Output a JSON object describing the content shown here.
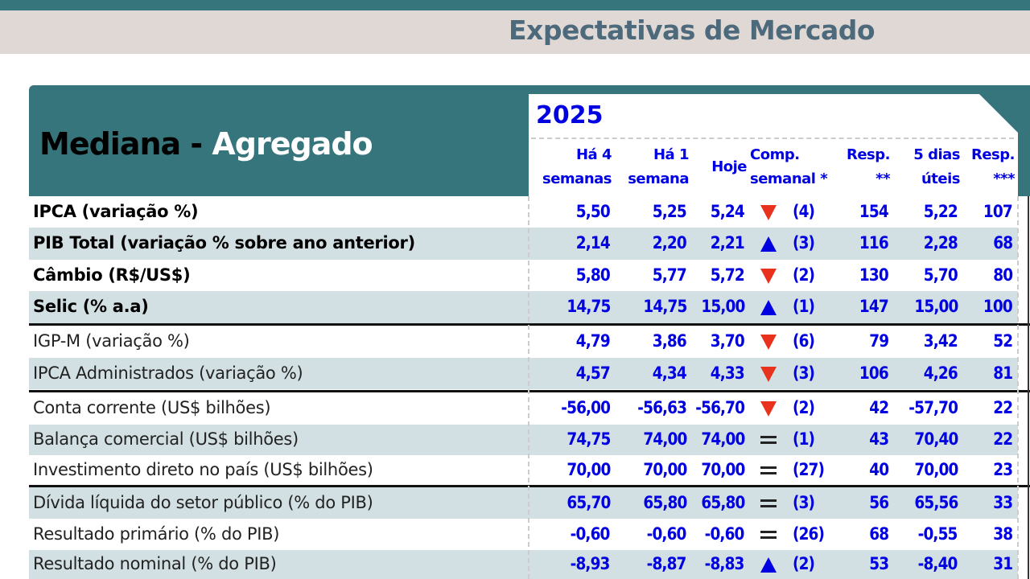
{
  "page_title": "Expectativas de Mercado",
  "header": {
    "title_a": "Mediana - ",
    "title_b": "Agregado",
    "year": "2025"
  },
  "columns": [
    {
      "l1": "Há 4",
      "l2": "semanas"
    },
    {
      "l1": "Há 1",
      "l2": "semana"
    },
    {
      "l1": "",
      "l2": "Hoje"
    },
    {
      "l1": "Comp.",
      "l2": "semanal *"
    },
    {
      "l1": "Resp.",
      "l2": "**"
    },
    {
      "l1": "5 dias",
      "l2": "úteis"
    },
    {
      "l1": "Resp.",
      "l2": "***"
    }
  ],
  "colors": {
    "teal": "#36757b",
    "blue": "#0000e0",
    "red": "#e8321e",
    "stripe": "#d3e0e3"
  },
  "rows": [
    {
      "label": "IPCA (variação %)",
      "bold": true,
      "h4": "5,50",
      "h1": "5,25",
      "hoje": "5,24",
      "trend": "down",
      "comp": "(4)",
      "resp": "154",
      "d5": "5,22",
      "resp3": "107"
    },
    {
      "label": "PIB Total (variação % sobre ano anterior)",
      "bold": true,
      "h4": "2,14",
      "h1": "2,20",
      "hoje": "2,21",
      "trend": "up",
      "comp": "(3)",
      "resp": "116",
      "d5": "2,28",
      "resp3": "68"
    },
    {
      "label": "Câmbio (R$/US$)",
      "bold": true,
      "h4": "5,80",
      "h1": "5,77",
      "hoje": "5,72",
      "trend": "down",
      "comp": "(2)",
      "resp": "130",
      "d5": "5,70",
      "resp3": "80"
    },
    {
      "label": "Selic (% a.a)",
      "bold": true,
      "h4": "14,75",
      "h1": "14,75",
      "hoje": "15,00",
      "trend": "up",
      "comp": "(1)",
      "resp": "147",
      "d5": "15,00",
      "resp3": "100"
    },
    {
      "label": "IGP-M (variação %)",
      "bold": false,
      "h4": "4,79",
      "h1": "3,86",
      "hoje": "3,70",
      "trend": "down",
      "comp": "(6)",
      "resp": "79",
      "d5": "3,42",
      "resp3": "52"
    },
    {
      "label": "IPCA Administrados (variação %)",
      "bold": false,
      "h4": "4,57",
      "h1": "4,34",
      "hoje": "4,33",
      "trend": "down",
      "comp": "(3)",
      "resp": "106",
      "d5": "4,26",
      "resp3": "81"
    },
    {
      "label": "Conta corrente (US$ bilhões)",
      "bold": false,
      "h4": "-56,00",
      "h1": "-56,63",
      "hoje": "-56,70",
      "trend": "down",
      "comp": "(2)",
      "resp": "42",
      "d5": "-57,70",
      "resp3": "22"
    },
    {
      "label": "Balança comercial (US$ bilhões)",
      "bold": false,
      "h4": "74,75",
      "h1": "74,00",
      "hoje": "74,00",
      "trend": "equal",
      "comp": "(1)",
      "resp": "43",
      "d5": "70,40",
      "resp3": "22"
    },
    {
      "label": "Investimento direto no país (US$ bilhões)",
      "bold": false,
      "h4": "70,00",
      "h1": "70,00",
      "hoje": "70,00",
      "trend": "equal",
      "comp": "(27)",
      "resp": "40",
      "d5": "70,00",
      "resp3": "23"
    },
    {
      "label": "Dívida líquida do setor público (% do PIB)",
      "bold": false,
      "h4": "65,70",
      "h1": "65,80",
      "hoje": "65,80",
      "trend": "equal",
      "comp": "(3)",
      "resp": "56",
      "d5": "65,56",
      "resp3": "33"
    },
    {
      "label": "Resultado primário (% do PIB)",
      "bold": false,
      "h4": "-0,60",
      "h1": "-0,60",
      "hoje": "-0,60",
      "trend": "equal",
      "comp": "(26)",
      "resp": "68",
      "d5": "-0,55",
      "resp3": "38"
    },
    {
      "label": "Resultado nominal (% do PIB)",
      "bold": false,
      "h4": "-8,93",
      "h1": "-8,87",
      "hoje": "-8,83",
      "trend": "up",
      "comp": "(2)",
      "resp": "53",
      "d5": "-8,40",
      "resp3": "31"
    }
  ]
}
